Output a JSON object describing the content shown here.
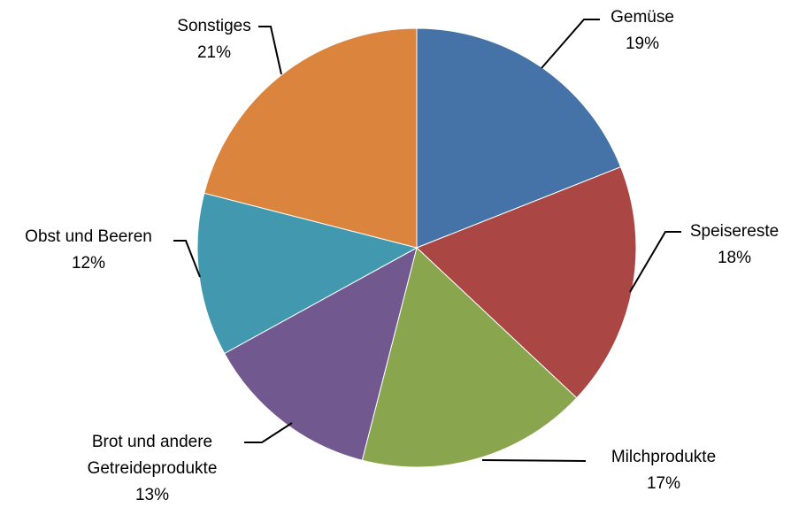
{
  "chart_data": {
    "type": "pie",
    "categories": [
      "Gemüse",
      "Speisereste",
      "Milchprodukte",
      "Brot und andere Getreideprodukte",
      "Obst und Beeren",
      "Sonstiges"
    ],
    "values": [
      19,
      18,
      17,
      13,
      12,
      21
    ],
    "value_labels": [
      "19%",
      "18%",
      "17%",
      "13%",
      "12%",
      "21%"
    ],
    "colors": [
      "#4572a7",
      "#aa4643",
      "#89a54e",
      "#71588f",
      "#4198af",
      "#db843d"
    ]
  }
}
